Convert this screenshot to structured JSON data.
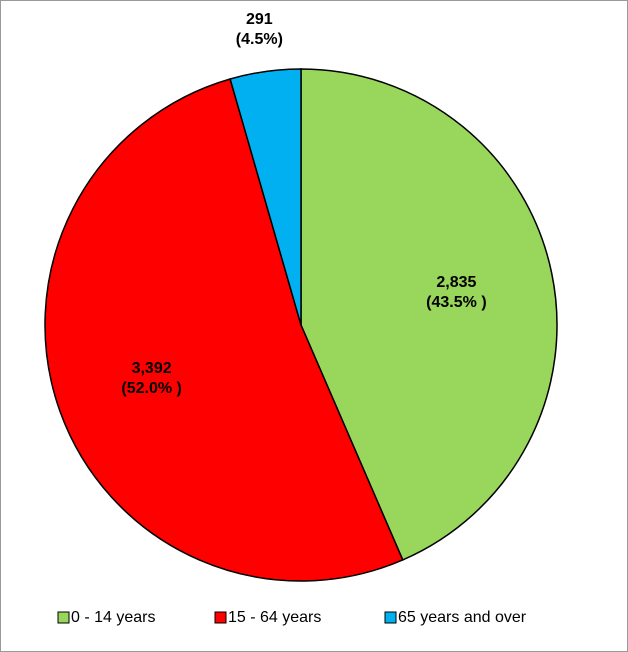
{
  "chart_data": {
    "type": "pie",
    "categories": [
      "0 - 14 years",
      "15 - 64 years",
      "65 years and over"
    ],
    "values": [
      2835,
      3392,
      291
    ],
    "value_labels": [
      "2,835",
      "3,392",
      "291"
    ],
    "percentages": [
      43.5,
      52.0,
      4.5
    ],
    "percentage_labels": [
      "(43.5% )",
      "(52.0% )",
      "(4.5%)"
    ],
    "colors": [
      "#99d65c",
      "#ff0000",
      "#00b0f0"
    ],
    "legend": "bottom"
  }
}
